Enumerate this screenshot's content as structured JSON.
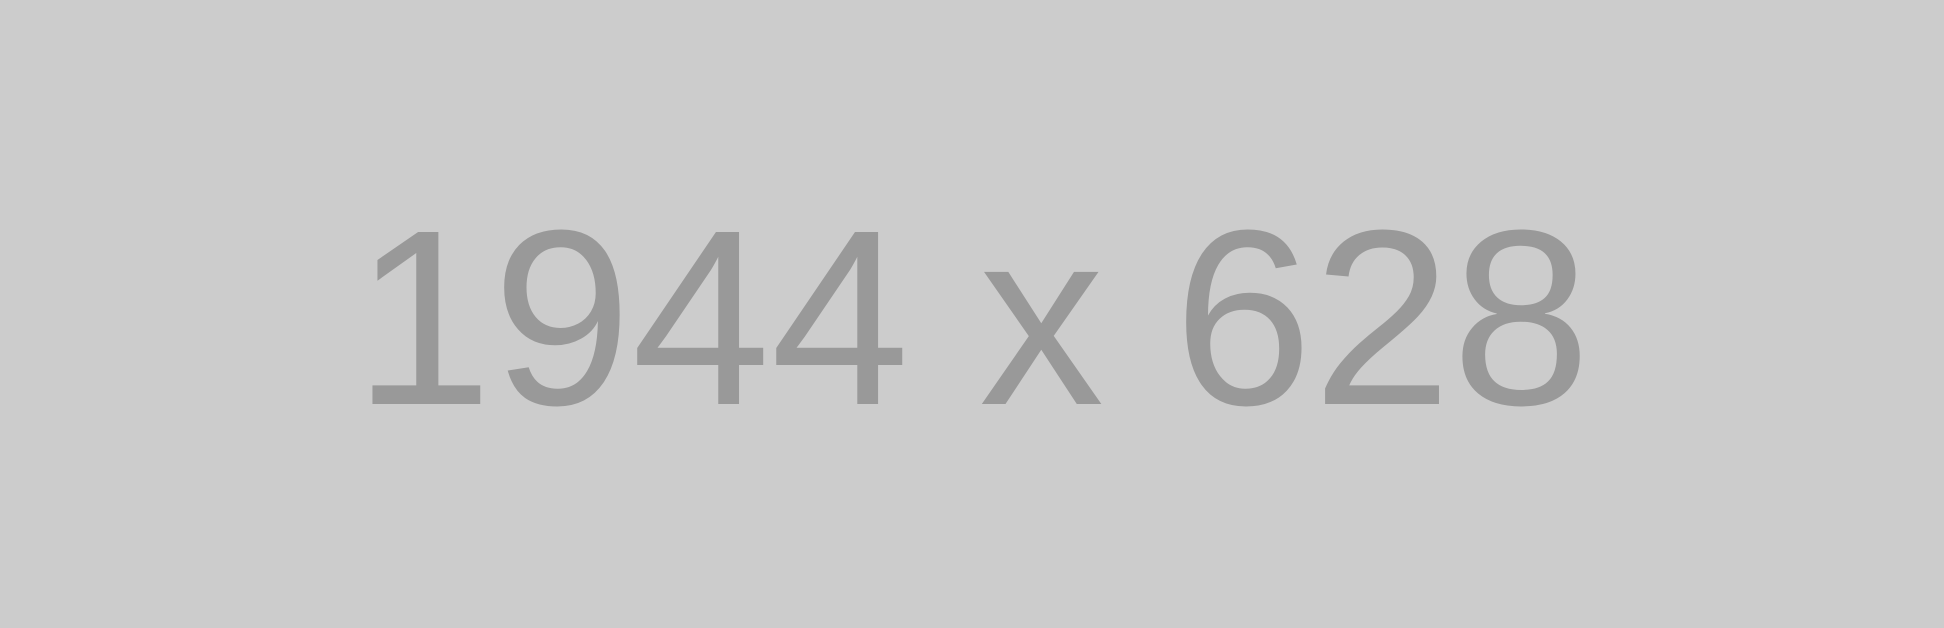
{
  "placeholder": {
    "text": "1944 x 628",
    "background_color": "#cccccc",
    "text_color": "#999999"
  }
}
